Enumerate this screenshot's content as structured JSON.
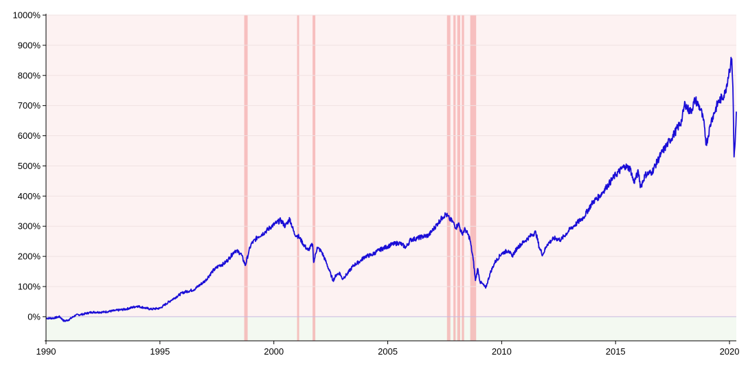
{
  "chart_data": {
    "type": "line",
    "title": "",
    "xlabel": "",
    "ylabel": "",
    "xlim": [
      1990,
      2020.3
    ],
    "ylim": [
      -80,
      1000
    ],
    "grid": "horizontal",
    "x_ticks": [
      1990,
      1995,
      2000,
      2005,
      2010,
      2015,
      2020
    ],
    "x_tick_labels": [
      "1990",
      "1995",
      "2000",
      "2005",
      "2010",
      "2015",
      "2020"
    ],
    "y_ticks": [
      0,
      100,
      200,
      300,
      400,
      500,
      600,
      700,
      800,
      900,
      1000
    ],
    "y_tick_labels": [
      "0%",
      "100%",
      "200%",
      "300%",
      "400%",
      "500%",
      "600%",
      "700%",
      "800%",
      "900%",
      "1000%"
    ],
    "background_regions": [
      {
        "range": "above-zero",
        "color": "#fdf2f2"
      },
      {
        "range": "below-zero",
        "color": "#f3f9f1"
      }
    ],
    "highlight_periods": [
      [
        1998.7,
        1998.85
      ],
      [
        2001.02,
        2001.1
      ],
      [
        2001.7,
        2001.82
      ],
      [
        2007.6,
        2007.75
      ],
      [
        2007.88,
        2007.98
      ],
      [
        2008.05,
        2008.18
      ],
      [
        2008.25,
        2008.35
      ],
      [
        2008.62,
        2008.88
      ]
    ],
    "series": [
      {
        "color": "#1a0dd6",
        "x": [
          1990.0,
          1990.3,
          1990.6,
          1990.8,
          1991.0,
          1991.3,
          1991.6,
          1992.0,
          1992.5,
          1993.0,
          1993.5,
          1994.0,
          1994.3,
          1994.6,
          1995.0,
          1995.5,
          1996.0,
          1996.5,
          1997.0,
          1997.3,
          1997.6,
          1997.8,
          1998.0,
          1998.3,
          1998.55,
          1998.75,
          1998.9,
          1999.0,
          1999.3,
          1999.6,
          1999.9,
          2000.1,
          2000.3,
          2000.5,
          2000.7,
          2000.9,
          2001.1,
          2001.3,
          2001.5,
          2001.7,
          2001.75,
          2001.9,
          2002.1,
          2002.3,
          2002.5,
          2002.6,
          2002.75,
          2002.9,
          2003.0,
          2003.2,
          2003.5,
          2003.8,
          2004.0,
          2004.3,
          2004.6,
          2004.9,
          2005.2,
          2005.5,
          2005.8,
          2006.0,
          2006.3,
          2006.5,
          2006.8,
          2007.0,
          2007.2,
          2007.4,
          2007.55,
          2007.7,
          2007.85,
          2008.0,
          2008.1,
          2008.25,
          2008.4,
          2008.6,
          2008.75,
          2008.85,
          2008.95,
          2009.05,
          2009.15,
          2009.3,
          2009.5,
          2009.7,
          2010.0,
          2010.3,
          2010.45,
          2010.7,
          2011.0,
          2011.3,
          2011.5,
          2011.65,
          2011.8,
          2012.0,
          2012.3,
          2012.6,
          2013.0,
          2013.3,
          2013.6,
          2014.0,
          2014.3,
          2014.6,
          2015.0,
          2015.4,
          2015.65,
          2015.8,
          2016.0,
          2016.1,
          2016.3,
          2016.6,
          2017.0,
          2017.3,
          2017.6,
          2017.9,
          2018.05,
          2018.15,
          2018.3,
          2018.5,
          2018.75,
          2018.9,
          2018.98,
          2019.2,
          2019.5,
          2019.8,
          2020.0,
          2020.1,
          2020.15,
          2020.2,
          2020.25,
          2020.3
        ],
        "y": [
          -5,
          -5,
          0,
          -15,
          -10,
          5,
          8,
          15,
          15,
          20,
          25,
          35,
          30,
          25,
          28,
          55,
          80,
          90,
          120,
          150,
          170,
          175,
          190,
          220,
          210,
          170,
          215,
          240,
          265,
          280,
          300,
          310,
          320,
          300,
          325,
          275,
          265,
          240,
          220,
          240,
          180,
          230,
          215,
          180,
          140,
          120,
          140,
          145,
          125,
          140,
          170,
          185,
          200,
          205,
          220,
          230,
          240,
          245,
          230,
          255,
          260,
          265,
          270,
          290,
          310,
          330,
          340,
          325,
          315,
          295,
          310,
          275,
          290,
          260,
          190,
          120,
          160,
          115,
          110,
          95,
          145,
          180,
          210,
          220,
          200,
          230,
          250,
          270,
          280,
          230,
          205,
          240,
          260,
          255,
          290,
          310,
          330,
          380,
          400,
          430,
          470,
          500,
          490,
          445,
          480,
          430,
          470,
          480,
          540,
          575,
          610,
          650,
          710,
          690,
          680,
          720,
          685,
          630,
          570,
          650,
          710,
          740,
          820,
          855,
          760,
          530,
          580,
          680
        ]
      }
    ]
  }
}
